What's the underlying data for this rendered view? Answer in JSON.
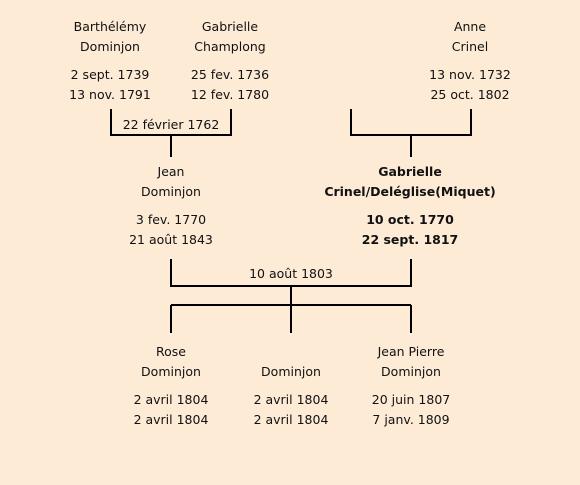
{
  "people": {
    "barthelemy": {
      "first": "Barthélémy",
      "last": "Dominjon",
      "birth": "2 sept. 1739",
      "death": "13 nov. 1791"
    },
    "gabrielle_c": {
      "first": "Gabrielle",
      "last": "Champlong",
      "birth": "25 fev. 1736",
      "death": "12 fev. 1780"
    },
    "anne": {
      "first": "Anne",
      "last": "Crinel",
      "birth": "13 nov. 1732",
      "death": "25 oct. 1802"
    },
    "jean": {
      "first": "Jean",
      "last": "Dominjon",
      "birth": "3 fev. 1770",
      "death": "21 août 1843"
    },
    "gabrielle_m": {
      "first": "Gabrielle",
      "last": "Crinel/Deléglise(Miquet)",
      "birth": "10 oct. 1770",
      "death": "22 sept. 1817"
    },
    "rose": {
      "first": "Rose",
      "last": "Dominjon",
      "birth": "2 avril 1804",
      "death": "2 avril 1804"
    },
    "child2": {
      "first": "",
      "last": "Dominjon",
      "birth": "2 avril 1804",
      "death": "2 avril 1804"
    },
    "jean_pierre": {
      "first": "Jean Pierre",
      "last": "Dominjon",
      "birth": "20 juin 1807",
      "death": "7 janv. 1809"
    }
  },
  "marriages": {
    "grandparents": "22 février 1762",
    "parents": "10 août 1803"
  }
}
